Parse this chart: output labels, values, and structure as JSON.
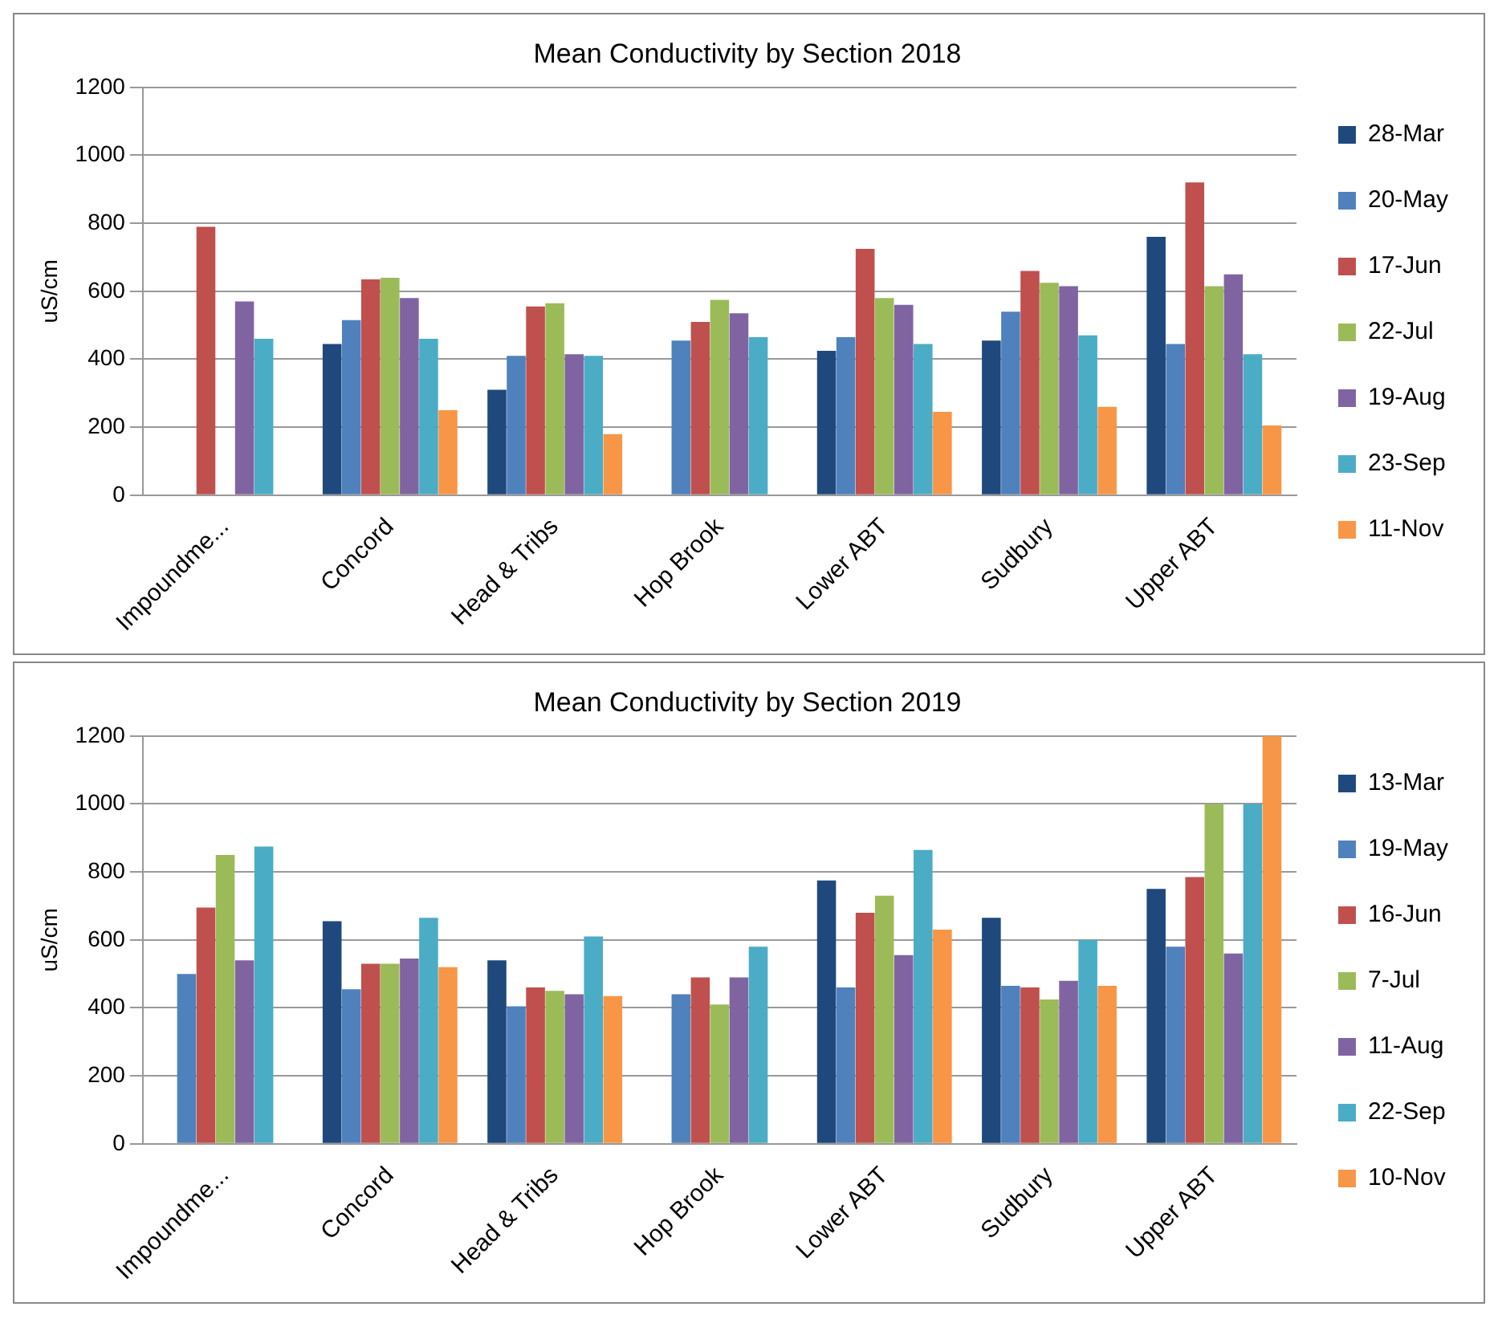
{
  "chart_data": [
    {
      "type": "bar",
      "title": "Mean Conductivity by Section 2018",
      "ylabel": "uS/cm",
      "categories": [
        "Impoundme...",
        "Concord",
        "Head & Tribs",
        "Hop Brook",
        "Lower ABT",
        "Sudbury",
        "Upper ABT"
      ],
      "ylim": [
        0,
        1200
      ],
      "yticks": [
        0,
        200,
        400,
        600,
        800,
        1000,
        1200
      ],
      "grid": "y",
      "legend": "right",
      "series": [
        {
          "name": "28-Mar",
          "color": "#1f497d",
          "values": [
            null,
            445,
            310,
            null,
            425,
            455,
            760
          ]
        },
        {
          "name": "20-May",
          "color": "#4f81bd",
          "values": [
            null,
            515,
            410,
            455,
            465,
            540,
            445
          ]
        },
        {
          "name": "17-Jun",
          "color": "#c0504d",
          "values": [
            790,
            635,
            555,
            510,
            725,
            660,
            920
          ]
        },
        {
          "name": "22-Jul",
          "color": "#9bbb59",
          "values": [
            null,
            640,
            565,
            575,
            580,
            625,
            615
          ]
        },
        {
          "name": "19-Aug",
          "color": "#8064a2",
          "values": [
            570,
            580,
            415,
            535,
            560,
            615,
            650
          ]
        },
        {
          "name": "23-Sep",
          "color": "#4bacc6",
          "values": [
            460,
            460,
            410,
            465,
            445,
            470,
            415
          ]
        },
        {
          "name": "11-Nov",
          "color": "#f79646",
          "values": [
            null,
            250,
            180,
            null,
            245,
            260,
            205
          ]
        }
      ]
    },
    {
      "type": "bar",
      "title": "Mean Conductivity by Section 2019",
      "ylabel": "uS/cm",
      "categories": [
        "Impoundme...",
        "Concord",
        "Head & Tribs",
        "Hop Brook",
        "Lower ABT",
        "Sudbury",
        "Upper ABT"
      ],
      "ylim": [
        0,
        1200
      ],
      "yticks": [
        0,
        200,
        400,
        600,
        800,
        1000,
        1200
      ],
      "grid": "y",
      "legend": "right",
      "series": [
        {
          "name": "13-Mar",
          "color": "#1f497d",
          "values": [
            null,
            655,
            540,
            null,
            775,
            665,
            750
          ]
        },
        {
          "name": "19-May",
          "color": "#4f81bd",
          "values": [
            500,
            455,
            405,
            440,
            460,
            465,
            580
          ]
        },
        {
          "name": "16-Jun",
          "color": "#c0504d",
          "values": [
            695,
            530,
            460,
            490,
            680,
            460,
            785
          ]
        },
        {
          "name": "7-Jul",
          "color": "#9bbb59",
          "values": [
            850,
            530,
            450,
            410,
            730,
            425,
            1000
          ]
        },
        {
          "name": "11-Aug",
          "color": "#8064a2",
          "values": [
            540,
            545,
            440,
            490,
            555,
            480,
            560
          ]
        },
        {
          "name": "22-Sep",
          "color": "#4bacc6",
          "values": [
            875,
            665,
            610,
            580,
            865,
            600,
            1000
          ]
        },
        {
          "name": "10-Nov",
          "color": "#f79646",
          "values": [
            null,
            520,
            435,
            null,
            630,
            465,
            1200
          ]
        }
      ]
    }
  ]
}
